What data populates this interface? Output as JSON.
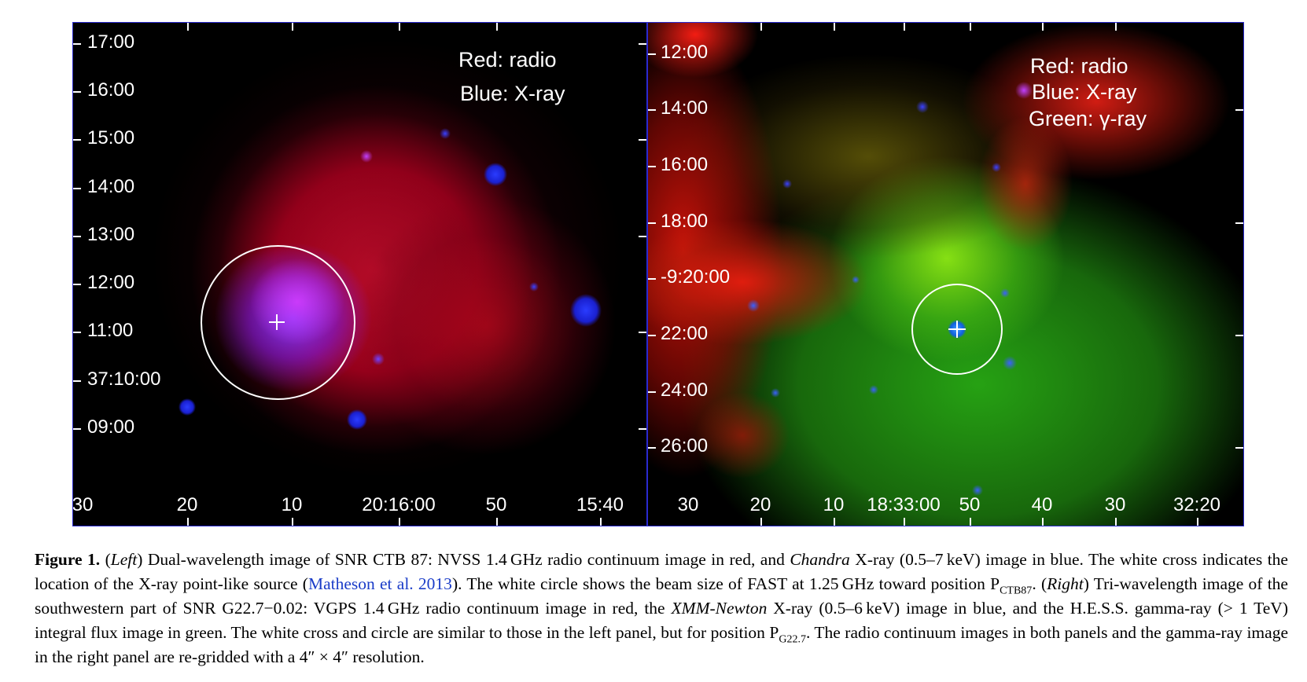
{
  "left": {
    "x_ticks": [
      "30",
      "20",
      "10",
      "20:16:00",
      "50",
      "15:40"
    ],
    "y_ticks": [
      "17:00",
      "16:00",
      "15:00",
      "14:00",
      "13:00",
      "12:00",
      "11:00",
      "37:10:00",
      "09:00"
    ],
    "legend": [
      "Red: radio",
      "Blue: X-ray"
    ]
  },
  "right": {
    "x_ticks": [
      "30",
      "20",
      "10",
      "18:33:00",
      "50",
      "40",
      "30",
      "32:20"
    ],
    "y_ticks": [
      "12:00",
      "14:00",
      "16:00",
      "18:00",
      "-9:20:00",
      "22:00",
      "24:00",
      "26:00"
    ],
    "legend": [
      "Red: radio",
      "Blue: X-ray",
      "Green: γ-ray"
    ]
  },
  "caption": {
    "label": "Figure 1.",
    "p1": " (",
    "left_word": "Left",
    "p2": ") Dual-wavelength image of SNR CTB 87: NVSS 1.4 GHz radio continuum image in red, and ",
    "chandra": "Chandra",
    "p3": " X-ray (0.5–7 keV) image in blue. The white cross indicates the location of the X-ray point-like source (",
    "cite": "Matheson et al. 2013",
    "p4": "). The white circle shows the beam size of FAST at 1.25 GHz toward position P",
    "sub1": "CTB87",
    "p5": ". (",
    "right_word": "Right",
    "p6": ") Tri-wavelength image of the southwestern part of SNR G22.7−0.02: VGPS 1.4 GHz radio continuum image in red, the ",
    "xmm": "XMM-Newton",
    "p7": " X-ray (0.5–6 keV) image in blue, and the H.E.S.S. gamma-ray (> 1 TeV) integral flux image in green. The white cross and circle are similar to those in the left panel, but for position P",
    "sub2": "G22.7",
    "p8": ". The radio continuum images in both panels and the gamma-ray image in the right panel are re-gridded with a 4″ × 4″ resolution."
  }
}
